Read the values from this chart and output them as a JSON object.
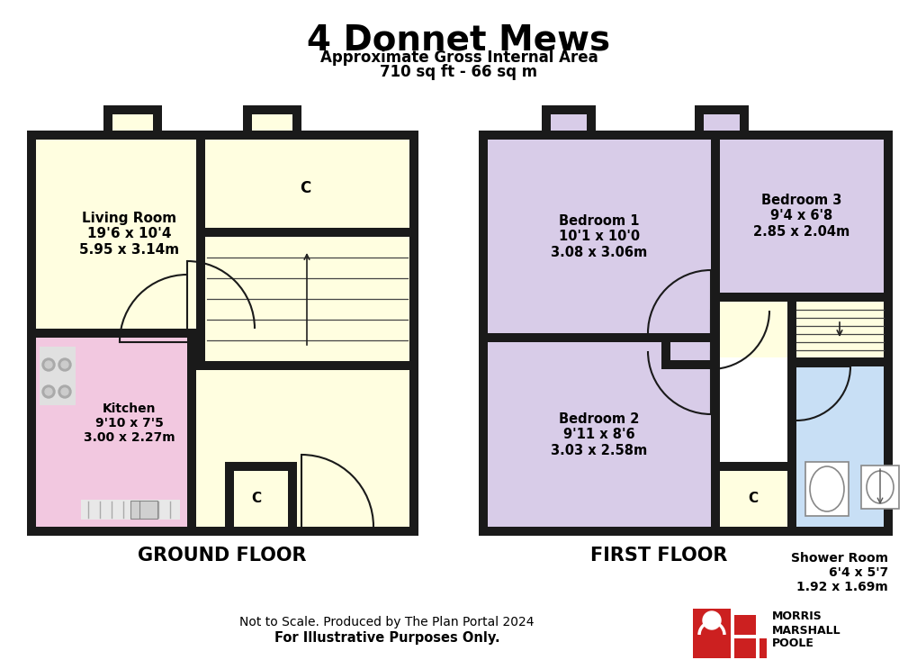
{
  "title": "4 Donnet Mews",
  "subtitle1": "Approximate Gross Internal Area",
  "subtitle2": "710 sq ft - 66 sq m",
  "footer1": "Not to Scale. Produced by The Plan Portal 2024",
  "footer2": "For Illustrative Purposes Only.",
  "bg_color": "#ffffff",
  "wall_color": "#1a1a1a",
  "color_living": "#fffee0",
  "color_kitchen": "#f2c8e0",
  "color_bedroom": "#d8cce8",
  "color_stairs": "#fffee0",
  "color_shower": "#c8dff5",
  "ground_floor_label": "GROUND FLOOR",
  "first_floor_label": "FIRST FLOOR",
  "shower_label": "Shower Room\n6'4 x 5'7\n1.92 x 1.69m",
  "living_label": "Living Room\n19'6 x 10'4\n5.95 x 3.14m",
  "kitchen_label": "Kitchen\n9'10 x 7'5\n3.00 x 2.27m",
  "bed1_label": "Bedroom 1\n10'1 x 10'0\n3.08 x 3.06m",
  "bed2_label": "Bedroom 2\n9'11 x 8'6\n3.03 x 2.58m",
  "bed3_label": "Bedroom 3\n9'4 x 6'8\n2.85 x 2.04m"
}
